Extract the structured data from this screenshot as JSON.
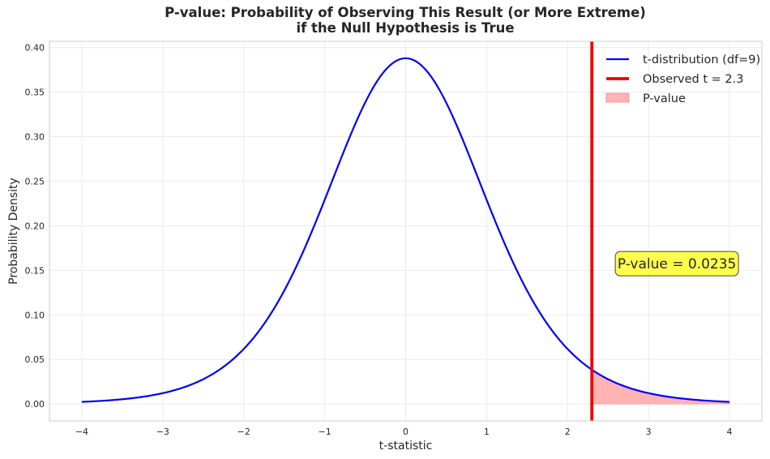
{
  "chart_data": {
    "type": "line",
    "title_lines": [
      "P-value: Probability of Observing This Result (or More Extreme)",
      "if the Null Hypothesis is True"
    ],
    "xlabel": "t-statistic",
    "ylabel": "Probability Density",
    "xlim": [
      -4.4,
      4.4
    ],
    "ylim": [
      -0.019,
      0.407
    ],
    "xticks": [
      -4,
      -3,
      -2,
      -1,
      0,
      1,
      2,
      3,
      4
    ],
    "xtick_labels": [
      "−4",
      "−3",
      "−2",
      "−1",
      "0",
      "1",
      "2",
      "3",
      "4"
    ],
    "yticks": [
      0.0,
      0.05,
      0.1,
      0.15,
      0.2,
      0.25,
      0.3,
      0.35,
      0.4
    ],
    "ytick_labels": [
      "0.00",
      "0.05",
      "0.10",
      "0.15",
      "0.20",
      "0.25",
      "0.30",
      "0.35",
      "0.40"
    ],
    "grid": true,
    "distribution": {
      "name": "t",
      "df": 9,
      "x_range": [
        -4,
        4
      ]
    },
    "observed_t": 2.3,
    "series": [
      {
        "name": "t-distribution (df=9)",
        "color": "#0000ee",
        "kind": "line"
      },
      {
        "name": "Observed t = 2.3",
        "color": "#ee0000",
        "kind": "vline"
      },
      {
        "name": "P-value",
        "color": "#ffb3b3",
        "kind": "area"
      }
    ],
    "legend_position": "top-right",
    "annotation": {
      "text": "P-value = 0.0235",
      "x": 3.35,
      "y": 0.1575,
      "box_color": "#ffff4d"
    }
  }
}
